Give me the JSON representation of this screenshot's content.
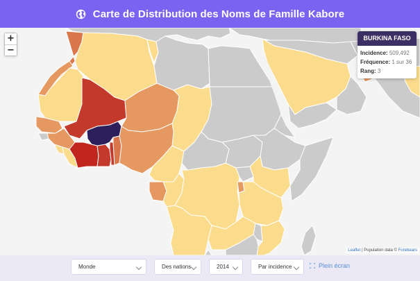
{
  "header": {
    "title": "Carte de Distribution des Noms de Famille Kabore",
    "icon": "globe-icon"
  },
  "zoom": {
    "in_label": "+",
    "out_label": "−"
  },
  "info_box": {
    "country": "BURKINA FASO",
    "incidence_label": "Incidence:",
    "incidence_value": "509,492",
    "frequency_label": "Fréquence:",
    "frequency_value": "1 sur 36",
    "rank_label": "Rang:",
    "rank_value": "3"
  },
  "attribution": {
    "leaflet": "Leaflet",
    "text": " | Population data © ",
    "source": "Forebears"
  },
  "controls": {
    "region": "Monde",
    "scope": "Des nations",
    "year": "2014",
    "metric": "Par incidence",
    "fullscreen": "Plein écran"
  },
  "colors": {
    "header": "#7a63f1",
    "highlight": "#2c1f5c",
    "no_data": "#c9c9c9",
    "water": "#f4f4f4",
    "low": "#fbdc8c",
    "mid": "#e59961",
    "high": "#c33a2d"
  }
}
